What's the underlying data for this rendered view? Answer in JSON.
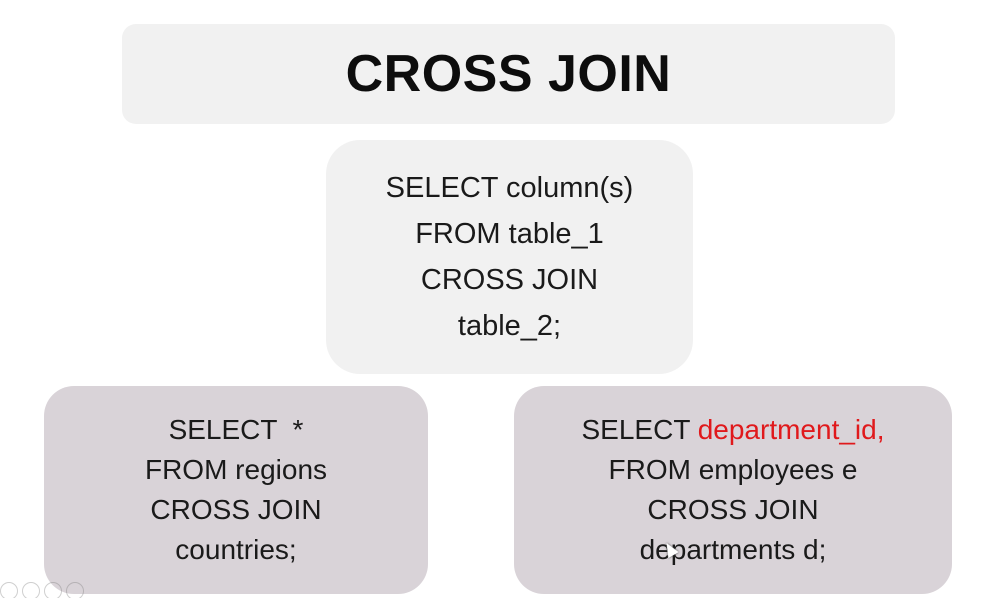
{
  "title": "CROSS JOIN",
  "syntax": {
    "lines": [
      "SELECT column(s)",
      "FROM table_1",
      "CROSS JOIN",
      "table_2;"
    ]
  },
  "example_left": {
    "lines": [
      "SELECT  *",
      "FROM regions",
      "CROSS JOIN",
      "countries;"
    ]
  },
  "example_right": {
    "line1_prefix": "SELECT ",
    "line1_highlight": "department_id,",
    "line2": "FROM employees e",
    "line3": "CROSS JOIN",
    "line4": "departments d;"
  },
  "colors": {
    "highlight": "#e0191c",
    "panel_light": "#f1f1f1",
    "panel_mauve": "#d9d3d8"
  },
  "toolbar": {
    "icons": [
      "pen-icon",
      "slides-icon",
      "zoom-icon",
      "more-icon"
    ]
  }
}
